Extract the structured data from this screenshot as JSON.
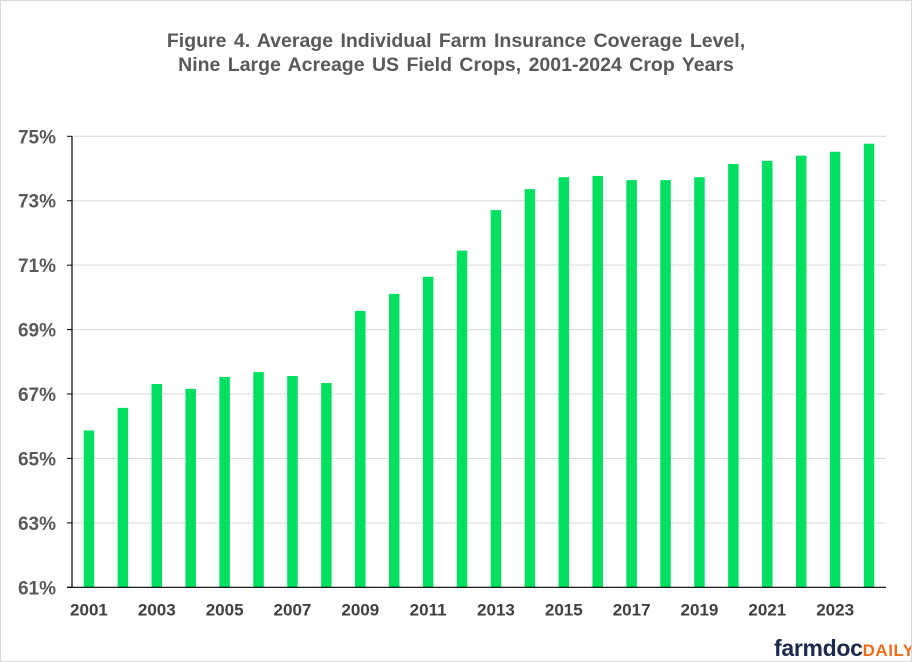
{
  "chart_data": {
    "type": "bar",
    "title_lines": [
      "Figure 4. Average Individual Farm Insurance Coverage Level,",
      "Nine Large Acreage US Field Crops, 2001-2024 Crop Years"
    ],
    "xlabel": "",
    "ylabel": "",
    "categories": [
      "2001",
      "2002",
      "2003",
      "2004",
      "2005",
      "2006",
      "2007",
      "2008",
      "2009",
      "2010",
      "2011",
      "2012",
      "2013",
      "2014",
      "2015",
      "2016",
      "2017",
      "2018",
      "2019",
      "2020",
      "2021",
      "2022",
      "2023",
      "2024"
    ],
    "x_tick_labels": [
      "2001",
      "2003",
      "2005",
      "2007",
      "2009",
      "2011",
      "2013",
      "2015",
      "2017",
      "2019",
      "2021",
      "2023"
    ],
    "values": [
      65.87,
      66.57,
      67.31,
      67.16,
      67.53,
      67.68,
      67.56,
      67.34,
      69.58,
      70.11,
      70.64,
      71.45,
      72.71,
      73.36,
      73.73,
      73.77,
      73.64,
      73.64,
      73.73,
      74.14,
      74.24,
      74.4,
      74.52,
      74.77
    ],
    "ylim": [
      61,
      75
    ],
    "y_ticks": [
      61,
      63,
      65,
      67,
      69,
      71,
      73,
      75
    ],
    "y_tick_format": "%",
    "grid": true,
    "legend": "none",
    "bar_color": "#00e060"
  },
  "logo": {
    "part1": "farmdoc",
    "part2": "DAILY"
  }
}
